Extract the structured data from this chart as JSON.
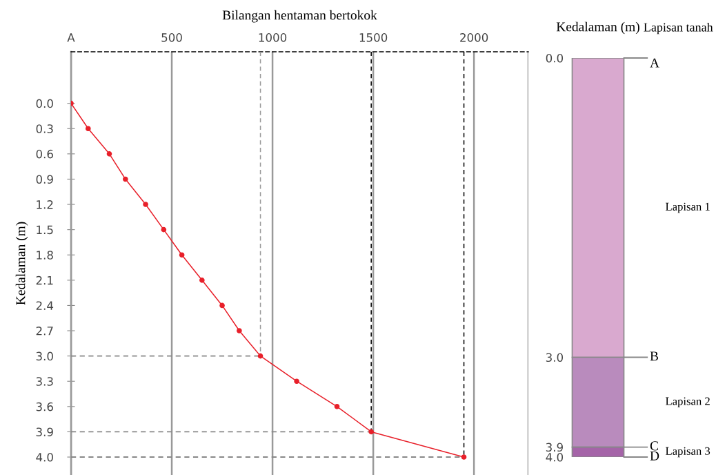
{
  "chart_data": [
    {
      "type": "line",
      "orientation": "horizontal",
      "xlabel": "Bilangan hentaman bertokok",
      "ylabel": "Kedalaman (m)",
      "categories": [
        "0.0",
        "0.3",
        "0.6",
        "0.9",
        "1.2",
        "1.5",
        "1.8",
        "2.1",
        "2.4",
        "2.7",
        "3.0",
        "3.3",
        "3.6",
        "3.9",
        "4.0"
      ],
      "series": [
        {
          "color": "#e8202a",
          "values": [
            0,
            85,
            190,
            270,
            370,
            460,
            550,
            650,
            750,
            835,
            940,
            1120,
            1320,
            1490,
            1950
          ]
        }
      ],
      "xlim": [
        0,
        2270
      ],
      "xticks": [
        {
          "value": 0,
          "label": "A"
        },
        500,
        1000,
        1500,
        2000
      ],
      "grid": "x",
      "marker": "circle",
      "line_style": "solid",
      "ref_lines": [
        {
          "axis": "x",
          "value": 940,
          "color": "#999999",
          "line_style": "dashed"
        },
        {
          "axis": "x",
          "value": 1490,
          "color": "#000000",
          "line_style": "dashed"
        },
        {
          "axis": "x",
          "value": 1950,
          "color": "#000000",
          "line_style": "dashed"
        },
        {
          "axis": "y",
          "value": "3.0",
          "color": "#888888",
          "line_style": "dashed"
        },
        {
          "axis": "y",
          "value": "3.9",
          "color": "#888888",
          "line_style": "dashed"
        },
        {
          "axis": "y",
          "value": "4.0",
          "color": "#888888",
          "line_style": "dashed"
        }
      ]
    },
    {
      "type": "bar",
      "stacked": true,
      "annotations": [
        "Lapisan tanah"
      ],
      "ylabel": "Kedalaman (m)",
      "categories": [
        null
      ],
      "series": [
        {
          "name": "Lapisan 1",
          "color": "#d9a9cf",
          "values": [
            3.0
          ]
        },
        {
          "name": "Lapisan 2",
          "color": "#b98bbd",
          "values": [
            0.9
          ]
        },
        {
          "name": "Lapisan 3",
          "color": "#a564a8",
          "values": [
            0.1
          ]
        }
      ],
      "ylim": [
        4.0,
        0.0
      ],
      "yticks": [
        {
          "value": 0,
          "label": "0.0"
        },
        {
          "value": 3,
          "label": "3.0"
        },
        3.9,
        {
          "value": 4,
          "label": "4.0"
        }
      ],
      "ref_lines": [
        {
          "axis": "y",
          "value": 0,
          "label": "A"
        },
        {
          "axis": "y",
          "value": 3.0,
          "label": "B"
        },
        {
          "axis": "y",
          "value": 3.9,
          "label": "C"
        },
        {
          "axis": "y",
          "value": 4.0,
          "label": "D"
        }
      ]
    }
  ]
}
